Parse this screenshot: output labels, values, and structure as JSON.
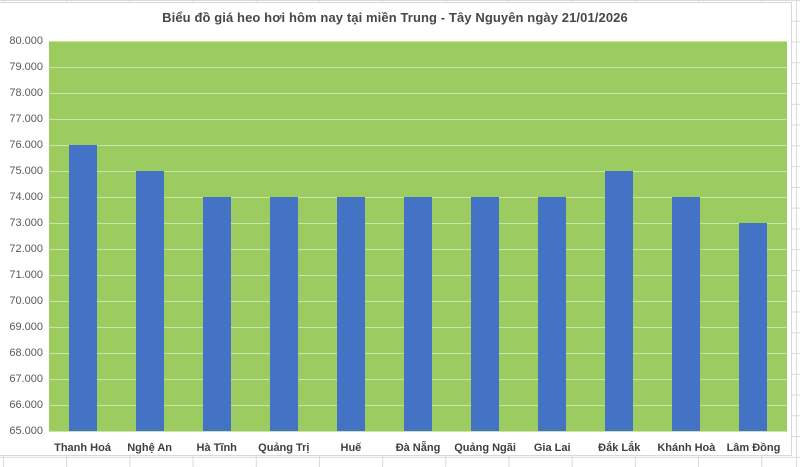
{
  "chart_data": {
    "type": "bar",
    "title": "Biểu đồ giá heo hơi hôm nay tại miền Trung - Tây Nguyên ngày 21/01/2026",
    "categories": [
      "Thanh Hoá",
      "Nghệ An",
      "Hà Tĩnh",
      "Quảng Trị",
      "Huế",
      "Đà Nẵng",
      "Quảng Ngãi",
      "Gia Lai",
      "Đắk Lắk",
      "Khánh Hoà",
      "Lâm Đồng"
    ],
    "values": [
      76000,
      75000,
      74000,
      74000,
      74000,
      74000,
      74000,
      74000,
      75000,
      74000,
      73000
    ],
    "xlabel": "",
    "ylabel": "",
    "ylim": [
      65000,
      80000
    ],
    "ytick_step": 1000,
    "ytick_labels": [
      "80.000",
      "79.000",
      "78.000",
      "77.000",
      "76.000",
      "75.000",
      "74.000",
      "73.000",
      "72.000",
      "71.000",
      "70.000",
      "69.000",
      "68.000",
      "67.000",
      "66.000",
      "65.000"
    ],
    "grid": "horizontal white lines on green plot background",
    "legend": "none"
  },
  "colors": {
    "bar": "#4472C4",
    "plot_bg": "#9CCB5F",
    "gridline": "#CBE2AB",
    "title_text": "#474747",
    "ytick_text": "#595959",
    "xtick_text": "#3F3F3F",
    "sheet_grid": "#D9D9D9"
  }
}
